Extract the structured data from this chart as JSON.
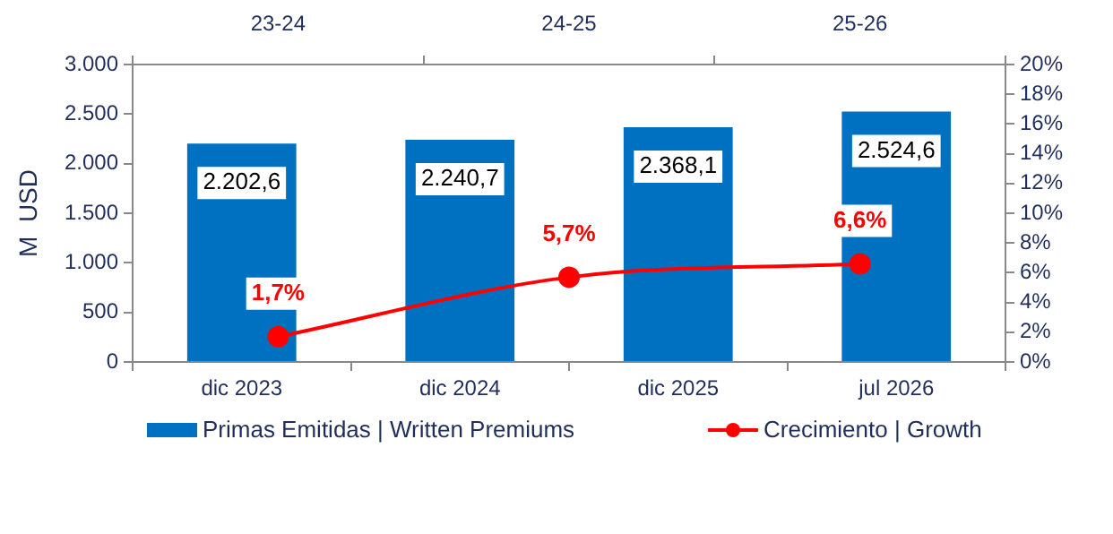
{
  "chart_data": [
    {
      "type": "bar",
      "ylabel": "M  USD",
      "categories": [
        "dic 2023",
        "dic 2024",
        "dic 2025",
        "jul 2026"
      ],
      "series": [
        {
          "name": "Primas Emitidas | Written Premiums",
          "color": "#0070c0",
          "values": [
            2202.6,
            2240.7,
            2368.1,
            2524.6
          ],
          "value_labels": [
            "2.202,6",
            "2.240,7",
            "2.368,1",
            "2.524,6"
          ]
        }
      ],
      "ylim": [
        0,
        3000
      ],
      "yticks": [
        {
          "value": 0,
          "label": "0"
        },
        {
          "value": 500,
          "label": "500"
        },
        {
          "value": 1000,
          "label": "1.000"
        },
        {
          "value": 1500,
          "label": "1.500"
        },
        {
          "value": 2000,
          "label": "2.000"
        },
        {
          "value": 2500,
          "label": "2.500"
        },
        {
          "value": 3000,
          "label": "3.000"
        }
      ],
      "grid": false,
      "legend": "bottom"
    },
    {
      "type": "line",
      "categories": [
        "23-24",
        "24-25",
        "25-26"
      ],
      "series": [
        {
          "name": "Crecimiento | Growth",
          "axis": "y2",
          "color": "#ff0000",
          "values": [
            1.7,
            5.7,
            6.6
          ],
          "value_labels": [
            "1,7%",
            "5,7%",
            "6,6%"
          ]
        }
      ],
      "y2lim": [
        0,
        20
      ],
      "y2ticks": [
        {
          "value": 0,
          "label": "0%"
        },
        {
          "value": 2,
          "label": "2%"
        },
        {
          "value": 4,
          "label": "4%"
        },
        {
          "value": 6,
          "label": "6%"
        },
        {
          "value": 8,
          "label": "8%"
        },
        {
          "value": 10,
          "label": "10%"
        },
        {
          "value": 12,
          "label": "12%"
        },
        {
          "value": 14,
          "label": "14%"
        },
        {
          "value": 16,
          "label": "16%"
        },
        {
          "value": 18,
          "label": "18%"
        },
        {
          "value": 20,
          "label": "20%"
        }
      ],
      "grid": false,
      "legend": "bottom",
      "marker": "circle",
      "line_style": "solid"
    }
  ]
}
